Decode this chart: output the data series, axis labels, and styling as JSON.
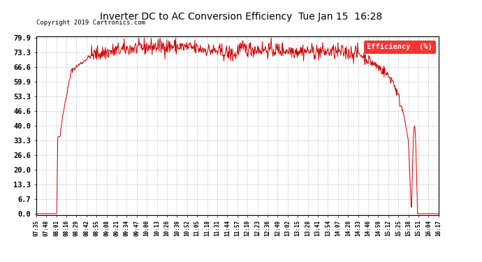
{
  "title": "Inverter DC to AC Conversion Efficiency  Tue Jan 15  16:28",
  "copyright": "Copyright 2019 Cartronics.com",
  "legend_label": "Efficiency  (%)",
  "line_color": "#cc0000",
  "bg_color": "#ffffff",
  "grid_color": "#bbbbbb",
  "yticks": [
    0.0,
    6.7,
    13.3,
    20.0,
    26.6,
    33.3,
    40.0,
    46.6,
    53.3,
    59.9,
    66.6,
    73.3,
    79.9
  ],
  "ymin": 0.0,
  "ymax": 79.9,
  "xtick_labels": [
    "07:35",
    "07:48",
    "08:01",
    "08:16",
    "08:29",
    "08:42",
    "08:55",
    "09:08",
    "09:21",
    "09:34",
    "09:47",
    "10:00",
    "10:13",
    "10:26",
    "10:39",
    "10:52",
    "11:05",
    "11:18",
    "11:31",
    "11:44",
    "11:57",
    "12:10",
    "12:23",
    "12:36",
    "12:49",
    "13:02",
    "13:15",
    "13:28",
    "13:41",
    "13:54",
    "14:07",
    "14:20",
    "14:33",
    "14:46",
    "14:59",
    "15:12",
    "15:25",
    "15:38",
    "15:51",
    "16:04",
    "16:17"
  ]
}
